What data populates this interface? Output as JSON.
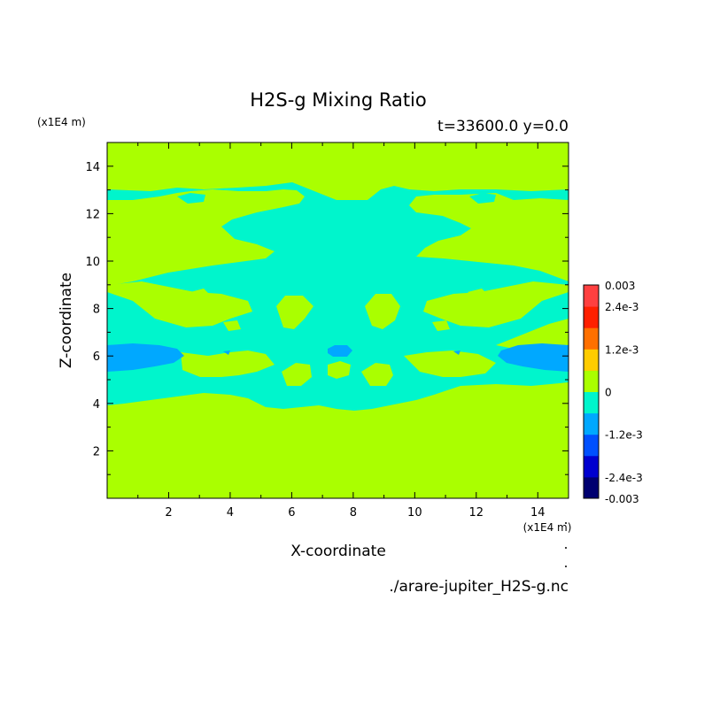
{
  "chart_data": {
    "type": "heatmap",
    "title": "H2S-g Mixing Ratio",
    "subtitle": "t=33600.0 y=0.0",
    "xlabel": "X-coordinate",
    "ylabel": "Z-coordinate",
    "x_unit": "(x1E4 m)",
    "y_unit": "(x1E4 m)",
    "source_file": "./arare-jupiter_H2S-g.nc",
    "xlim": [
      0,
      15
    ],
    "ylim": [
      0,
      15
    ],
    "x_ticks": [
      "2",
      "4",
      "6",
      "8",
      "10",
      "12",
      "14"
    ],
    "y_ticks": [
      "2",
      "4",
      "6",
      "8",
      "10",
      "12",
      "14"
    ],
    "background_level": 0,
    "colorbar": {
      "min": -0.003,
      "max": 0.003,
      "labels": [
        "0.003",
        "2.4e-3",
        "1.2e-3",
        "0",
        "-1.2e-3",
        "-2.4e-3",
        "-0.003"
      ],
      "colors": [
        "#000070",
        "#0000d0",
        "#0050ff",
        "#00a8ff",
        "#00f5cc",
        "#aaff00",
        "#ffcc00",
        "#ff7000",
        "#ff2000",
        "#ff4040"
      ]
    },
    "regions": [
      {
        "level": "negative_small",
        "color": "#00f5cc",
        "description": "central mixing plume"
      },
      {
        "level": "negative_medium",
        "color": "#00a8ff",
        "description": "edge pockets near z=6"
      }
    ]
  }
}
